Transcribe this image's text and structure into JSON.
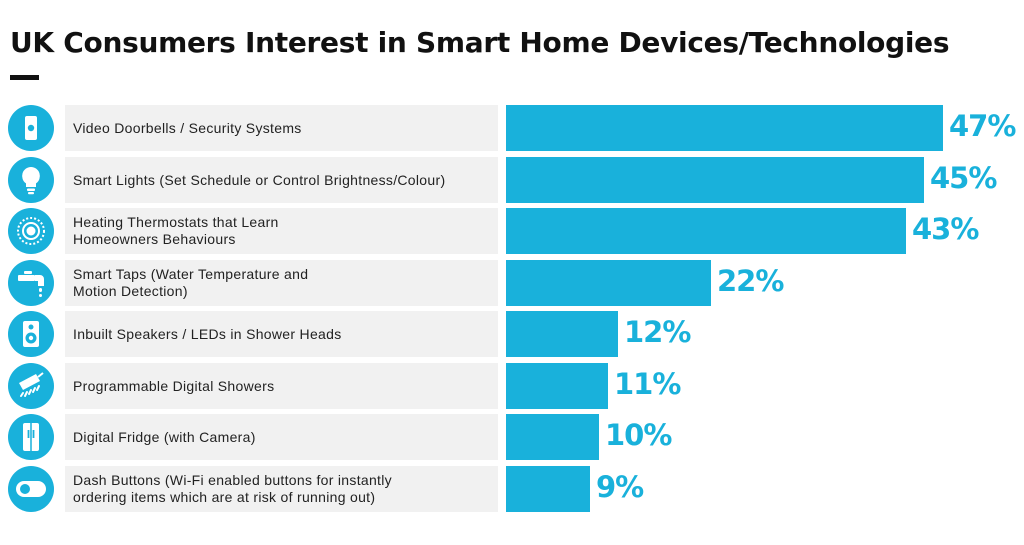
{
  "colors": {
    "accent": "#19b1db",
    "label_bg": "#f1f1f1",
    "title": "#111111"
  },
  "chart_data": {
    "type": "bar",
    "orientation": "horizontal",
    "title": "UK Consumers Interest in Smart Home Devices/Technologies",
    "xlabel": "",
    "ylabel": "",
    "xlim": [
      0,
      47
    ],
    "unit": "%",
    "grid": false,
    "categories": [
      "Video Doorbells / Security Systems",
      "Smart Lights (Set Schedule or Control Brightness/Colour)",
      "Heating Thermostats that Learn\nHomeowners Behaviours",
      "Smart Taps (Water Temperature and\nMotion Detection)",
      "Inbuilt Speakers / LEDs in Shower Heads",
      "Programmable Digital Showers",
      "Digital Fridge (with Camera)",
      "Dash Buttons (Wi-Fi enabled buttons for instantly\nordering items which are at risk of running out)"
    ],
    "values": [
      47,
      45,
      43,
      22,
      12,
      11,
      10,
      9
    ],
    "value_labels": [
      "47%",
      "45%",
      "43%",
      "22%",
      "12%",
      "11%",
      "10%",
      "9%"
    ],
    "icons": [
      "doorbell-icon",
      "lightbulb-icon",
      "thermostat-icon",
      "tap-icon",
      "speaker-icon",
      "shower-icon",
      "fridge-icon",
      "dash-button-icon"
    ]
  }
}
